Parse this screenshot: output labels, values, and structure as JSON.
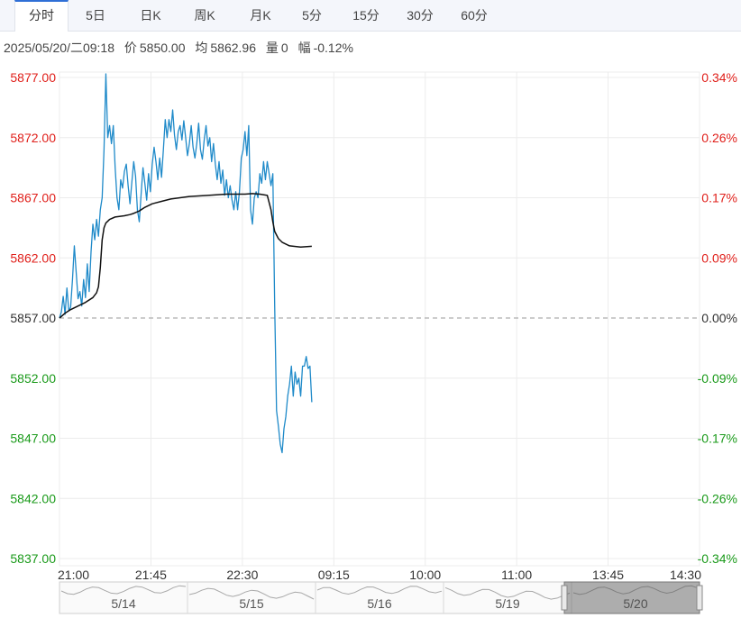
{
  "tabs": [
    {
      "label": "分时",
      "active": true
    },
    {
      "label": "5日",
      "active": false
    },
    {
      "label": "日K",
      "active": false
    },
    {
      "label": "周K",
      "active": false
    },
    {
      "label": "月K",
      "active": false
    },
    {
      "label": "5分",
      "active": false
    },
    {
      "label": "15分",
      "active": false
    },
    {
      "label": "30分",
      "active": false
    },
    {
      "label": "60分",
      "active": false
    }
  ],
  "info": {
    "datetime": "2025/05/20/二09:18",
    "price_label": "价",
    "price": "5850.00",
    "avg_label": "均",
    "avg": "5862.96",
    "vol_label": "量",
    "vol": "0",
    "chg_label": "幅",
    "chg": "-0.12%"
  },
  "colors": {
    "up": "#e0201b",
    "down": "#1a9a1a",
    "neutral": "#333333",
    "price_line": "#1f8ac9",
    "avg_line": "#111111",
    "grid": "#ececec",
    "baseline": "#9a9a9a",
    "accent": "#2f6fd6"
  },
  "chart_data": {
    "type": "line",
    "prev_close": 5857.0,
    "ylim": [
      5837,
      5877
    ],
    "y_ticks": [
      {
        "price": "5877.00",
        "pct": "0.34%",
        "value": 5877
      },
      {
        "price": "5872.00",
        "pct": "0.26%",
        "value": 5872
      },
      {
        "price": "5867.00",
        "pct": "0.17%",
        "value": 5867
      },
      {
        "price": "5862.00",
        "pct": "0.09%",
        "value": 5862
      },
      {
        "price": "5857.00",
        "pct": "0.00%",
        "value": 5857
      },
      {
        "price": "5852.00",
        "pct": "-0.09%",
        "value": 5852
      },
      {
        "price": "5847.00",
        "pct": "-0.17%",
        "value": 5847
      },
      {
        "price": "5842.00",
        "pct": "-0.26%",
        "value": 5842
      },
      {
        "price": "5837.00",
        "pct": "-0.34%",
        "value": 5837
      }
    ],
    "x_ticks": [
      "21:00",
      "21:45",
      "22:30",
      "09:15",
      "10:00",
      "11:00",
      "13:45",
      "14:30"
    ],
    "total_minutes": 345,
    "series": [
      {
        "key": "price",
        "values": [
          [
            0,
            5857.0
          ],
          [
            1,
            5857.5
          ],
          [
            2,
            5858.8
          ],
          [
            3,
            5857.3
          ],
          [
            4,
            5859.5
          ],
          [
            5,
            5857.6
          ],
          [
            6,
            5857.9
          ],
          [
            7,
            5860.2
          ],
          [
            8,
            5863.0
          ],
          [
            9,
            5860.8
          ],
          [
            10,
            5858.6
          ],
          [
            11,
            5859.2
          ],
          [
            12,
            5858.0
          ],
          [
            13,
            5860.2
          ],
          [
            14,
            5858.7
          ],
          [
            15,
            5861.5
          ],
          [
            16,
            5859.2
          ],
          [
            17,
            5862.5
          ],
          [
            18,
            5864.8
          ],
          [
            19,
            5863.5
          ],
          [
            20,
            5865.2
          ],
          [
            21,
            5863.8
          ],
          [
            22,
            5866.0
          ],
          [
            23,
            5867.0
          ],
          [
            24,
            5871.0
          ],
          [
            25,
            5877.3
          ],
          [
            26,
            5872.0
          ],
          [
            27,
            5873.0
          ],
          [
            28,
            5871.5
          ],
          [
            29,
            5873.0
          ],
          [
            30,
            5869.5
          ],
          [
            31,
            5867.0
          ],
          [
            32,
            5866.0
          ],
          [
            33,
            5868.5
          ],
          [
            34,
            5867.8
          ],
          [
            35,
            5869.2
          ],
          [
            36,
            5869.8
          ],
          [
            37,
            5868.0
          ],
          [
            38,
            5866.5
          ],
          [
            39,
            5868.3
          ],
          [
            40,
            5870.0
          ],
          [
            41,
            5868.8
          ],
          [
            42,
            5866.0
          ],
          [
            43,
            5865.0
          ],
          [
            44,
            5867.3
          ],
          [
            45,
            5869.5
          ],
          [
            46,
            5868.2
          ],
          [
            47,
            5866.8
          ],
          [
            48,
            5869.0
          ],
          [
            49,
            5867.5
          ],
          [
            50,
            5869.8
          ],
          [
            51,
            5871.2
          ],
          [
            52,
            5870.0
          ],
          [
            53,
            5868.5
          ],
          [
            54,
            5870.3
          ],
          [
            55,
            5868.7
          ],
          [
            56,
            5871.0
          ],
          [
            57,
            5873.5
          ],
          [
            58,
            5872.0
          ],
          [
            59,
            5873.5
          ],
          [
            60,
            5872.5
          ],
          [
            61,
            5874.3
          ],
          [
            62,
            5872.2
          ],
          [
            63,
            5871.0
          ],
          [
            64,
            5872.5
          ],
          [
            65,
            5873.0
          ],
          [
            66,
            5871.8
          ],
          [
            67,
            5873.4
          ],
          [
            68,
            5872.0
          ],
          [
            69,
            5870.5
          ],
          [
            70,
            5871.5
          ],
          [
            71,
            5873.0
          ],
          [
            72,
            5871.2
          ],
          [
            73,
            5870.3
          ],
          [
            74,
            5871.5
          ],
          [
            75,
            5873.2
          ],
          [
            76,
            5871.0
          ],
          [
            77,
            5870.2
          ],
          [
            78,
            5871.8
          ],
          [
            79,
            5873.0
          ],
          [
            80,
            5871.3
          ],
          [
            81,
            5872.0
          ],
          [
            82,
            5870.0
          ],
          [
            83,
            5871.5
          ],
          [
            84,
            5869.8
          ],
          [
            85,
            5868.5
          ],
          [
            86,
            5870.0
          ],
          [
            87,
            5868.2
          ],
          [
            88,
            5869.3
          ],
          [
            89,
            5867.2
          ],
          [
            90,
            5868.5
          ],
          [
            91,
            5867.0
          ],
          [
            92,
            5868.0
          ],
          [
            93,
            5866.8
          ],
          [
            94,
            5866.0
          ],
          [
            95,
            5867.5
          ],
          [
            96,
            5866.0
          ],
          [
            97,
            5867.5
          ],
          [
            98,
            5870.3
          ],
          [
            99,
            5871.0
          ],
          [
            100,
            5872.5
          ],
          [
            101,
            5870.5
          ],
          [
            102,
            5873.0
          ],
          [
            103,
            5866.0
          ],
          [
            104,
            5864.8
          ],
          [
            105,
            5867.0
          ],
          [
            106,
            5867.5
          ],
          [
            107,
            5867.0
          ],
          [
            108,
            5869.0
          ],
          [
            109,
            5868.2
          ],
          [
            110,
            5870.0
          ],
          [
            111,
            5868.5
          ],
          [
            112,
            5870.0
          ],
          [
            113,
            5869.0
          ],
          [
            114,
            5868.0
          ],
          [
            115,
            5869.0
          ],
          [
            116,
            5858.0
          ],
          [
            117,
            5849.3
          ],
          [
            118,
            5848.0
          ],
          [
            119,
            5846.5
          ],
          [
            120,
            5845.8
          ],
          [
            121,
            5847.8
          ],
          [
            122,
            5848.8
          ],
          [
            123,
            5850.5
          ],
          [
            124,
            5851.5
          ],
          [
            125,
            5853.0
          ],
          [
            126,
            5850.5
          ],
          [
            127,
            5852.5
          ],
          [
            128,
            5851.5
          ],
          [
            129,
            5852.0
          ],
          [
            130,
            5850.5
          ],
          [
            131,
            5853.0
          ],
          [
            132,
            5853.0
          ],
          [
            133,
            5853.8
          ],
          [
            134,
            5852.8
          ],
          [
            135,
            5853.0
          ],
          [
            136,
            5850.0
          ]
        ]
      },
      {
        "key": "avg",
        "values": [
          [
            0,
            5857.0
          ],
          [
            3,
            5857.4
          ],
          [
            6,
            5857.7
          ],
          [
            10,
            5858.0
          ],
          [
            14,
            5858.3
          ],
          [
            18,
            5858.7
          ],
          [
            20,
            5859.1
          ],
          [
            21,
            5859.6
          ],
          [
            22,
            5861.2
          ],
          [
            23,
            5863.5
          ],
          [
            24,
            5864.5
          ],
          [
            25,
            5864.9
          ],
          [
            27,
            5865.2
          ],
          [
            30,
            5865.4
          ],
          [
            35,
            5865.5
          ],
          [
            38,
            5865.6
          ],
          [
            40,
            5865.7
          ],
          [
            43,
            5865.9
          ],
          [
            46,
            5866.2
          ],
          [
            50,
            5866.5
          ],
          [
            55,
            5866.7
          ],
          [
            60,
            5866.9
          ],
          [
            70,
            5867.1
          ],
          [
            80,
            5867.2
          ],
          [
            90,
            5867.3
          ],
          [
            100,
            5867.3
          ],
          [
            104,
            5867.35
          ],
          [
            108,
            5867.3
          ],
          [
            112,
            5867.2
          ],
          [
            114,
            5866.0
          ],
          [
            115,
            5865.0
          ],
          [
            116,
            5864.2
          ],
          [
            118,
            5863.6
          ],
          [
            120,
            5863.3
          ],
          [
            124,
            5863.0
          ],
          [
            130,
            5862.9
          ],
          [
            136,
            5862.96
          ]
        ]
      }
    ]
  }
}
